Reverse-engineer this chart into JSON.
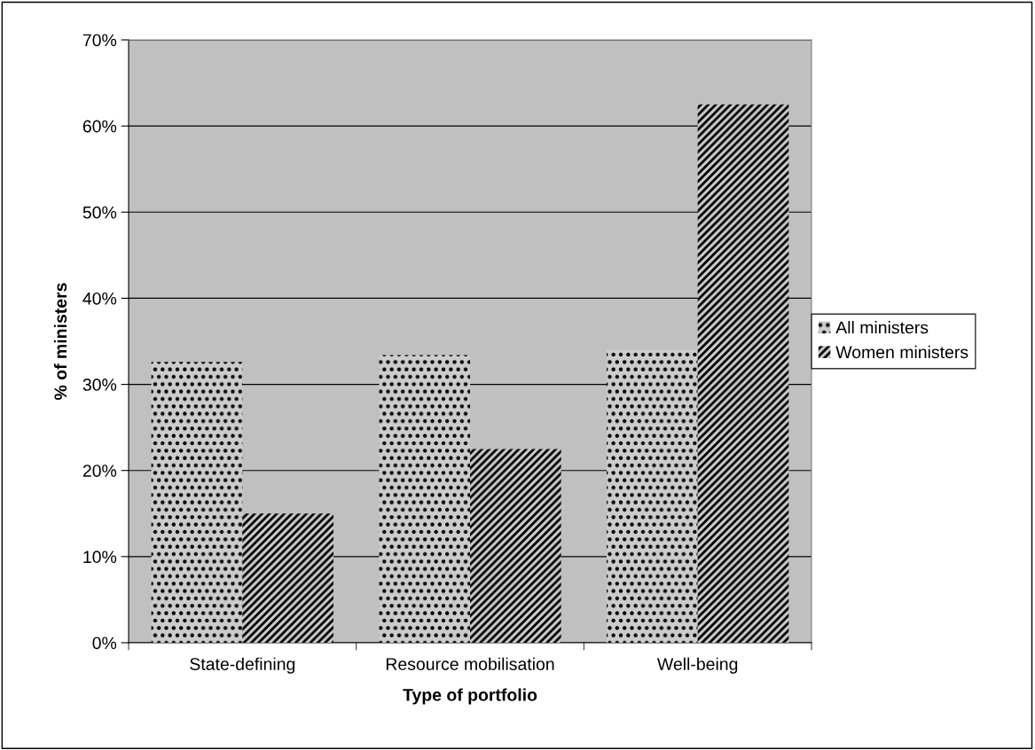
{
  "chart_data": {
    "type": "bar",
    "xlabel": "Type of portfolio",
    "ylabel": "% of ministers",
    "categories": [
      "State-defining",
      "Resource mobilisation",
      "Well-being"
    ],
    "series": [
      {
        "name": "All ministers",
        "color": "#cccccc",
        "values": [
          32.6,
          33.4,
          34.0
        ]
      },
      {
        "name": "Women ministers",
        "color": "#cccccc",
        "values": [
          15.0,
          22.5,
          62.5
        ]
      }
    ],
    "ylim": [
      0,
      70
    ],
    "yticks": [
      {
        "value": 0,
        "label": "0%"
      },
      {
        "value": 10,
        "label": "10%"
      },
      {
        "value": 20,
        "label": "20%"
      },
      {
        "value": 30,
        "label": "30%"
      },
      {
        "value": 40,
        "label": "40%"
      },
      {
        "value": 50,
        "label": "50%"
      },
      {
        "value": 60,
        "label": "60%"
      },
      {
        "value": 70,
        "label": "70%"
      }
    ],
    "grid": "y",
    "legend": "right"
  }
}
